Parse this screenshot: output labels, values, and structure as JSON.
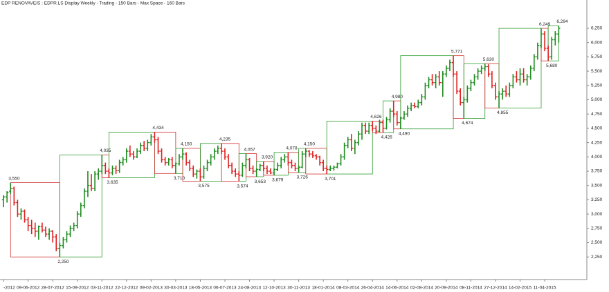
{
  "chart_data": {
    "type": "ohlc",
    "title": "EDP RENOVAVEIS : EDPR.LS Display   Weekly  - Trading - 150 Bars - Max Space - 160 Bars",
    "up_color": "#1e8c1e",
    "down_color": "#e02020",
    "box_up_color": "#2a9a2a",
    "box_down_color": "#d03030",
    "ylim": [
      1854,
      6745
    ],
    "yticks": [
      {
        "value": 2250,
        "label": "2,250"
      },
      {
        "value": 2500,
        "label": "2,500"
      },
      {
        "value": 2750,
        "label": "2,750"
      },
      {
        "value": 3000,
        "label": "3,000"
      },
      {
        "value": 3250,
        "label": "3,250"
      },
      {
        "value": 3500,
        "label": "3,500"
      },
      {
        "value": 3750,
        "label": "3,750"
      },
      {
        "value": 4000,
        "label": "4,000"
      },
      {
        "value": 4250,
        "label": "4,250"
      },
      {
        "value": 4500,
        "label": "4,500"
      },
      {
        "value": 4750,
        "label": "4,750"
      },
      {
        "value": 5000,
        "label": "5,000"
      },
      {
        "value": 5250,
        "label": "5,250"
      },
      {
        "value": 5500,
        "label": "5,500"
      },
      {
        "value": 5750,
        "label": "5,750"
      },
      {
        "value": 6000,
        "label": "6,000"
      },
      {
        "value": 6250,
        "label": "6,250"
      }
    ],
    "xlim": [
      -1,
      166
    ],
    "xticks": [
      {
        "value": 0,
        "label": "-2012"
      },
      {
        "value": 7,
        "label": "09-06-2012"
      },
      {
        "value": 14,
        "label": "28-07-2012"
      },
      {
        "value": 21,
        "label": "15-09-2012"
      },
      {
        "value": 28,
        "label": "03-11-2012"
      },
      {
        "value": 35,
        "label": "22-12-2012"
      },
      {
        "value": 42,
        "label": "09-02-2013"
      },
      {
        "value": 49,
        "label": "30-03-2013"
      },
      {
        "value": 56,
        "label": "18-05-2013"
      },
      {
        "value": 63,
        "label": "06-07-2013"
      },
      {
        "value": 70,
        "label": "24-08-2013"
      },
      {
        "value": 77,
        "label": "12-10-2013"
      },
      {
        "value": 84,
        "label": "30-11-2013"
      },
      {
        "value": 91,
        "label": "18-01-2014"
      },
      {
        "value": 98,
        "label": "08-03-2014"
      },
      {
        "value": 105,
        "label": "26-04-2014"
      },
      {
        "value": 112,
        "label": "14-06-2014"
      },
      {
        "value": 119,
        "label": "02-08-2014"
      },
      {
        "value": 126,
        "label": "20-09-2014"
      },
      {
        "value": 133,
        "label": "08-11-2014"
      },
      {
        "value": 140,
        "label": "27-12-2014"
      },
      {
        "value": 147,
        "label": "14-02-2015"
      },
      {
        "value": 154,
        "label": "11-04-2015"
      }
    ],
    "bars": [
      [
        3250,
        3330,
        3120,
        3300
      ],
      [
        3300,
        3400,
        3200,
        3380
      ],
      [
        3400,
        3550,
        3350,
        3450
      ],
      [
        3450,
        3480,
        3150,
        3200
      ],
      [
        3200,
        3250,
        2950,
        3000
      ],
      [
        3000,
        3100,
        2900,
        3050
      ],
      [
        3050,
        3080,
        2850,
        2900
      ],
      [
        2900,
        2950,
        2700,
        2800
      ],
      [
        2800,
        2900,
        2650,
        2750
      ],
      [
        2750,
        2850,
        2600,
        2700
      ],
      [
        2700,
        2800,
        2550,
        2780
      ],
      [
        2780,
        2850,
        2680,
        2720
      ],
      [
        2720,
        2780,
        2600,
        2650
      ],
      [
        2650,
        2750,
        2550,
        2700
      ],
      [
        2700,
        2720,
        2500,
        2600
      ],
      [
        2600,
        2650,
        2350,
        2400
      ],
      [
        2400,
        2500,
        2250,
        2450
      ],
      [
        2450,
        2600,
        2400,
        2550
      ],
      [
        2550,
        2700,
        2500,
        2650
      ],
      [
        2650,
        2800,
        2600,
        2750
      ],
      [
        2750,
        2850,
        2700,
        2800
      ],
      [
        2800,
        3050,
        2750,
        3000
      ],
      [
        3000,
        3200,
        2950,
        3150
      ],
      [
        3150,
        3450,
        3100,
        3400
      ],
      [
        3400,
        3750,
        3300,
        3500
      ],
      [
        3500,
        3700,
        3400,
        3450
      ],
      [
        3450,
        3750,
        3400,
        3700
      ],
      [
        3700,
        3800,
        3600,
        3750
      ],
      [
        3750,
        4035,
        3700,
        3850
      ],
      [
        3850,
        3900,
        3700,
        3750
      ],
      [
        3750,
        3800,
        3635,
        3720
      ],
      [
        3720,
        3850,
        3680,
        3800
      ],
      [
        3800,
        3850,
        3700,
        3760
      ],
      [
        3760,
        3950,
        3720,
        3900
      ],
      [
        3900,
        4000,
        3850,
        3950
      ],
      [
        3950,
        4150,
        3900,
        4100
      ],
      [
        4100,
        4200,
        4000,
        4050
      ],
      [
        4050,
        4100,
        3950,
        4000
      ],
      [
        4000,
        4150,
        3980,
        4100
      ],
      [
        4100,
        4250,
        4050,
        4200
      ],
      [
        4200,
        4280,
        4100,
        4150
      ],
      [
        4150,
        4300,
        4100,
        4250
      ],
      [
        4250,
        4400,
        4200,
        4350
      ],
      [
        4350,
        4434,
        4250,
        4300
      ],
      [
        4300,
        4350,
        4050,
        4100
      ],
      [
        4100,
        4150,
        3900,
        3950
      ],
      [
        3950,
        4000,
        3850,
        3900
      ],
      [
        3900,
        3980,
        3850,
        3950
      ],
      [
        3950,
        4000,
        3800,
        3850
      ],
      [
        3850,
        3900,
        3710,
        3880
      ],
      [
        3880,
        4050,
        3850,
        4000
      ],
      [
        4000,
        4150,
        3950,
        4050
      ],
      [
        4050,
        4080,
        3850,
        3900
      ],
      [
        3900,
        3950,
        3750,
        3800
      ],
      [
        3800,
        3850,
        3650,
        3700
      ],
      [
        3700,
        3780,
        3620,
        3750
      ],
      [
        3750,
        3800,
        3575,
        3650
      ],
      [
        3650,
        3850,
        3620,
        3800
      ],
      [
        3800,
        3950,
        3750,
        3900
      ],
      [
        3900,
        4050,
        3850,
        4000
      ],
      [
        4000,
        4150,
        3950,
        4100
      ],
      [
        4100,
        4200,
        4050,
        4150
      ],
      [
        4150,
        4235,
        4050,
        4100
      ],
      [
        4100,
        4150,
        3950,
        4000
      ],
      [
        4000,
        4050,
        3800,
        3850
      ],
      [
        3850,
        3900,
        3700,
        3750
      ],
      [
        3750,
        3800,
        3650,
        3700
      ],
      [
        3700,
        3750,
        3574,
        3680
      ],
      [
        3680,
        3900,
        3650,
        3850
      ],
      [
        3850,
        4057,
        3800,
        3950
      ],
      [
        3950,
        3980,
        3750,
        3800
      ],
      [
        3800,
        3850,
        3700,
        3750
      ],
      [
        3750,
        3800,
        3653,
        3780
      ],
      [
        3780,
        3880,
        3750,
        3850
      ],
      [
        3850,
        3920,
        3750,
        3800
      ],
      [
        3800,
        3850,
        3700,
        3750
      ],
      [
        3750,
        3800,
        3700,
        3720
      ],
      [
        3720,
        3800,
        3679,
        3780
      ],
      [
        3780,
        3900,
        3750,
        3850
      ],
      [
        3850,
        4000,
        3800,
        3950
      ],
      [
        3950,
        4050,
        3900,
        4000
      ],
      [
        4000,
        4078,
        3850,
        3900
      ],
      [
        3900,
        3950,
        3800,
        3850
      ],
      [
        3850,
        3900,
        3750,
        3800
      ],
      [
        3800,
        3850,
        3726,
        3820
      ],
      [
        3820,
        4100,
        3800,
        4050
      ],
      [
        4050,
        4150,
        4000,
        4100
      ],
      [
        4100,
        4120,
        4000,
        4050
      ],
      [
        4050,
        4100,
        3980,
        4020
      ],
      [
        4020,
        4050,
        3950,
        4000
      ],
      [
        4000,
        4020,
        3850,
        3900
      ],
      [
        3900,
        3950,
        3750,
        3800
      ],
      [
        3800,
        3850,
        3701,
        3780
      ],
      [
        3780,
        3850,
        3750,
        3800
      ],
      [
        3800,
        3850,
        3760,
        3820
      ],
      [
        3820,
        3900,
        3800,
        3880
      ],
      [
        3880,
        4050,
        3850,
        4000
      ],
      [
        4000,
        4250,
        3950,
        4200
      ],
      [
        4200,
        4350,
        4150,
        4300
      ],
      [
        4300,
        4400,
        4100,
        4150
      ],
      [
        4150,
        4300,
        4050,
        4250
      ],
      [
        4250,
        4450,
        4200,
        4400
      ],
      [
        4400,
        4600,
        4300,
        4550
      ],
      [
        4550,
        4600,
        4400,
        4450
      ],
      [
        4450,
        4600,
        4400,
        4550
      ],
      [
        4550,
        4626,
        4450,
        4500
      ],
      [
        4500,
        4550,
        4400,
        4450
      ],
      [
        4450,
        4650,
        4430,
        4600
      ],
      [
        4600,
        4650,
        4426,
        4500
      ],
      [
        4500,
        4700,
        4480,
        4650
      ],
      [
        4650,
        4850,
        4600,
        4800
      ],
      [
        4800,
        4980,
        4700,
        4750
      ],
      [
        4750,
        4800,
        4550,
        4600
      ],
      [
        4600,
        4700,
        4490,
        4680
      ],
      [
        4680,
        4800,
        4650,
        4750
      ],
      [
        4750,
        4900,
        4700,
        4850
      ],
      [
        4850,
        4950,
        4800,
        4900
      ],
      [
        4900,
        4950,
        4850,
        4880
      ],
      [
        4880,
        5000,
        4850,
        4950
      ],
      [
        4950,
        5100,
        4900,
        5050
      ],
      [
        5050,
        5300,
        5000,
        5250
      ],
      [
        5250,
        5400,
        5200,
        5350
      ],
      [
        5350,
        5450,
        5250,
        5300
      ],
      [
        5300,
        5450,
        5200,
        5400
      ],
      [
        5400,
        5500,
        5250,
        5300
      ],
      [
        5300,
        5500,
        5050,
        5450
      ],
      [
        5450,
        5600,
        5400,
        5550
      ],
      [
        5550,
        5700,
        5500,
        5650
      ],
      [
        5650,
        5771,
        5400,
        5450
      ],
      [
        5450,
        5500,
        5100,
        5150
      ],
      [
        5150,
        5200,
        4900,
        4950
      ],
      [
        4950,
        5050,
        4674,
        5000
      ],
      [
        5000,
        5250,
        4950,
        5200
      ],
      [
        5200,
        5350,
        5150,
        5300
      ],
      [
        5300,
        5450,
        5250,
        5400
      ],
      [
        5400,
        5550,
        5350,
        5500
      ],
      [
        5500,
        5600,
        5450,
        5550
      ],
      [
        5550,
        5630,
        5500,
        5580
      ],
      [
        5580,
        5620,
        5400,
        5450
      ],
      [
        5450,
        5500,
        5200,
        5250
      ],
      [
        5250,
        5300,
        5000,
        5050
      ],
      [
        5050,
        5150,
        4855,
        5100
      ],
      [
        5100,
        5200,
        5000,
        5150
      ],
      [
        5150,
        5250,
        5050,
        5100
      ],
      [
        5100,
        5300,
        5050,
        5250
      ],
      [
        5250,
        5450,
        5200,
        5400
      ],
      [
        5400,
        5500,
        5300,
        5350
      ],
      [
        5350,
        5550,
        5250,
        5450
      ],
      [
        5450,
        5550,
        5300,
        5350
      ],
      [
        5350,
        5450,
        5250,
        5400
      ],
      [
        5400,
        5600,
        5350,
        5550
      ],
      [
        5550,
        5800,
        5500,
        5750
      ],
      [
        5750,
        6000,
        5700,
        5950
      ],
      [
        5950,
        6249,
        5900,
        6150
      ],
      [
        6150,
        6200,
        5850,
        5900
      ],
      [
        5900,
        5950,
        5680,
        5750
      ],
      [
        5750,
        6100,
        5700,
        6050
      ],
      [
        6050,
        6200,
        5950,
        6150
      ],
      [
        6150,
        6294,
        6000,
        6250
      ]
    ],
    "annotations": [
      {
        "x": 2,
        "value": 3550,
        "label": "3,550"
      },
      {
        "x": 16,
        "value": 2250,
        "label": "2,250"
      },
      {
        "x": 28,
        "value": 4035,
        "label": "4,035"
      },
      {
        "x": 30,
        "value": 3635,
        "label": "3,635"
      },
      {
        "x": 43,
        "value": 4434,
        "label": "4,434"
      },
      {
        "x": 49,
        "value": 3710,
        "label": "3,710"
      },
      {
        "x": 51,
        "value": 4150,
        "label": "4,150"
      },
      {
        "x": 56,
        "value": 3575,
        "label": "3,575"
      },
      {
        "x": 62,
        "value": 4235,
        "label": "4,235"
      },
      {
        "x": 67,
        "value": 3574,
        "label": "3,574"
      },
      {
        "x": 69,
        "value": 4057,
        "label": "4,057"
      },
      {
        "x": 72,
        "value": 3653,
        "label": "3,653"
      },
      {
        "x": 74,
        "value": 3920,
        "label": "3,920"
      },
      {
        "x": 77,
        "value": 3679,
        "label": "3,679"
      },
      {
        "x": 81,
        "value": 4078,
        "label": "4,078"
      },
      {
        "x": 84,
        "value": 3726,
        "label": "3,726"
      },
      {
        "x": 86,
        "value": 4150,
        "label": "4,150"
      },
      {
        "x": 92,
        "value": 3701,
        "label": "3,701"
      },
      {
        "x": 105,
        "value": 4626,
        "label": "4,626"
      },
      {
        "x": 108,
        "value": 4426,
        "label": "4,426"
      },
      {
        "x": 111,
        "value": 4980,
        "label": "4,980"
      },
      {
        "x": 113,
        "value": 4490,
        "label": "4,490"
      },
      {
        "x": 128,
        "value": 5771,
        "label": "5,771"
      },
      {
        "x": 131,
        "value": 4674,
        "label": "4,674"
      },
      {
        "x": 137,
        "value": 5630,
        "label": "5,630"
      },
      {
        "x": 141,
        "value": 4855,
        "label": "4,855"
      },
      {
        "x": 153,
        "value": 6249,
        "label": "6,249"
      },
      {
        "x": 155,
        "value": 5680,
        "label": "5,680"
      },
      {
        "x": 158,
        "value": 6294,
        "label": "6,294"
      }
    ]
  }
}
